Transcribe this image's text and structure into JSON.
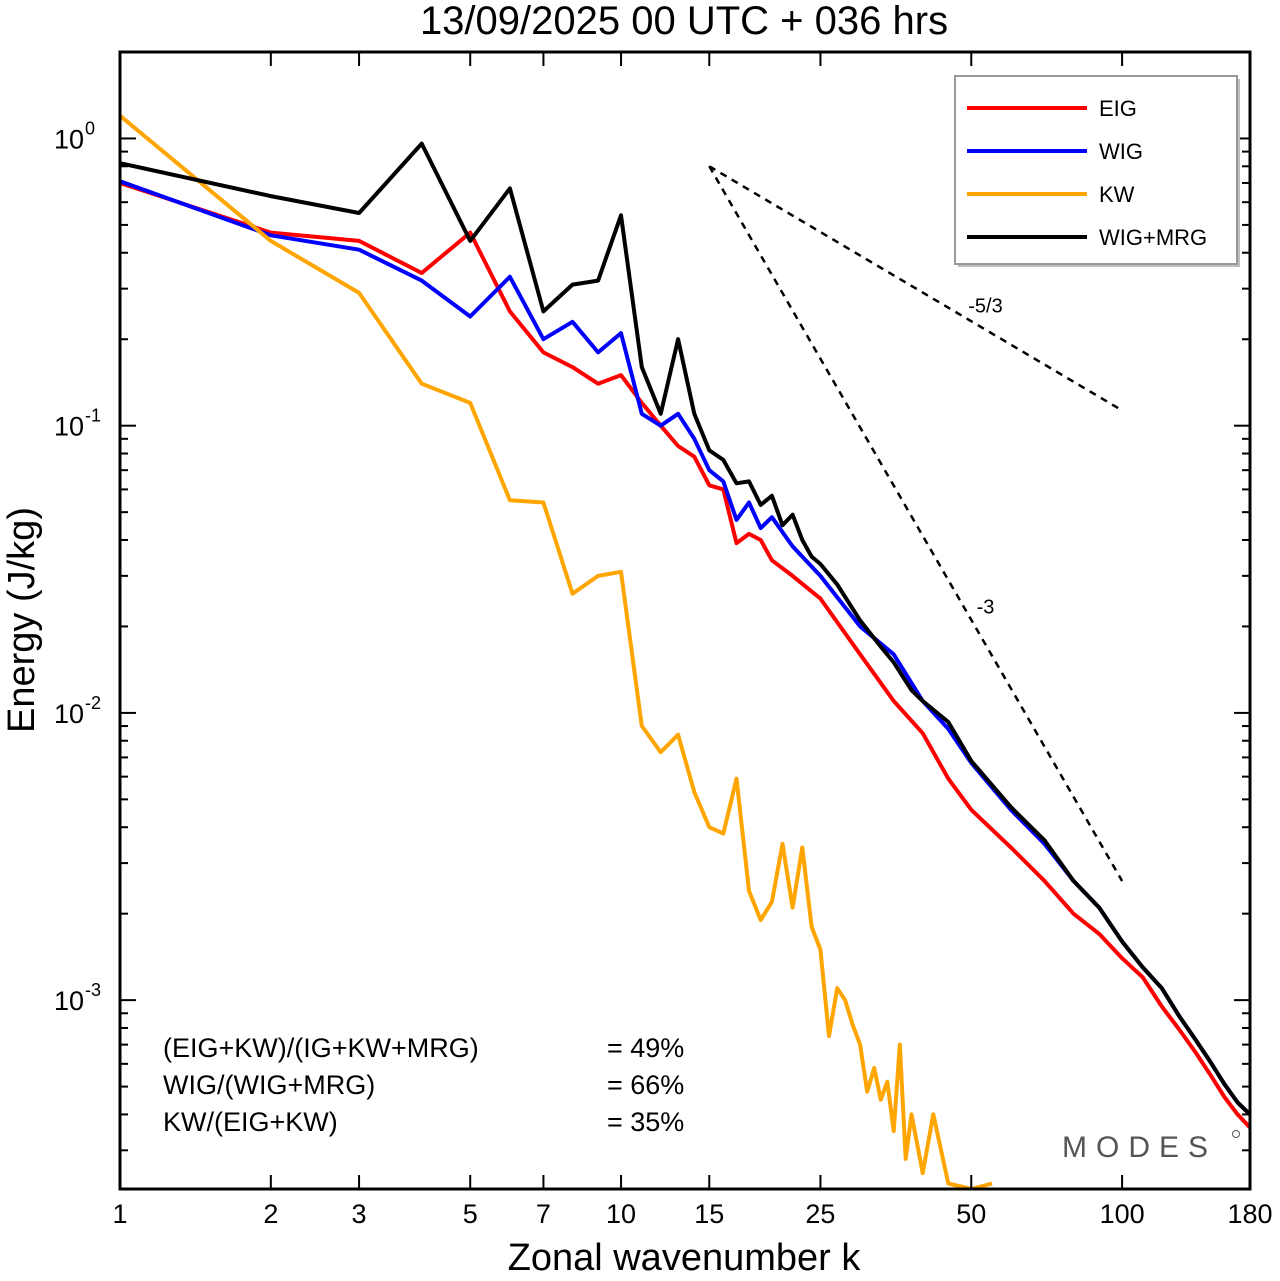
{
  "chart_data": {
    "type": "line",
    "title": "13/09/2025  00 UTC  + 036 hrs",
    "xlabel": "Zonal wavenumber k",
    "ylabel": "Energy (J/kg)",
    "xscale": "log",
    "yscale": "log",
    "xlim": [
      1,
      180
    ],
    "ylim": [
      0.00022,
      2.0
    ],
    "xticks": [
      {
        "value": 1,
        "label": "1"
      },
      {
        "value": 2,
        "label": "2"
      },
      {
        "value": 3,
        "label": "3"
      },
      {
        "value": 5,
        "label": "5"
      },
      {
        "value": 7,
        "label": "7"
      },
      {
        "value": 10,
        "label": "10"
      },
      {
        "value": 15,
        "label": "15"
      },
      {
        "value": 25,
        "label": "25"
      },
      {
        "value": 50,
        "label": "50"
      },
      {
        "value": 100,
        "label": "100"
      },
      {
        "value": 180,
        "label": "180"
      }
    ],
    "yticks": [
      {
        "value": 1,
        "base": "10",
        "exp": "0"
      },
      {
        "value": 0.1,
        "base": "10",
        "exp": "-1"
      },
      {
        "value": 0.01,
        "base": "10",
        "exp": "-2"
      },
      {
        "value": 0.001,
        "base": "10",
        "exp": "-3"
      }
    ],
    "legend_position": "top-right",
    "series": [
      {
        "name": "EIG",
        "color": "#ff0000",
        "x": [
          1,
          2,
          3,
          4,
          5,
          6,
          7,
          8,
          9,
          10,
          11,
          12,
          13,
          14,
          15,
          16,
          17,
          18,
          19,
          20,
          22,
          25,
          30,
          35,
          40,
          45,
          50,
          60,
          70,
          80,
          90,
          100,
          110,
          120,
          130,
          140,
          150,
          160,
          170,
          180
        ],
        "values": [
          0.7,
          0.47,
          0.44,
          0.34,
          0.47,
          0.25,
          0.18,
          0.16,
          0.14,
          0.15,
          0.12,
          0.1,
          0.085,
          0.078,
          0.062,
          0.06,
          0.039,
          0.042,
          0.04,
          0.034,
          0.03,
          0.025,
          0.016,
          0.011,
          0.0085,
          0.0059,
          0.0046,
          0.0034,
          0.0026,
          0.002,
          0.0017,
          0.0014,
          0.0012,
          0.00095,
          0.00079,
          0.00066,
          0.00055,
          0.00046,
          0.0004,
          0.00036
        ]
      },
      {
        "name": "WIG",
        "color": "#0000ff",
        "x": [
          1,
          2,
          3,
          4,
          5,
          6,
          7,
          8,
          9,
          10,
          11,
          12,
          13,
          14,
          15,
          16,
          17,
          18,
          19,
          20,
          22,
          25,
          30,
          35,
          40,
          45,
          50,
          60,
          70,
          80,
          90,
          100,
          110,
          120,
          130,
          140,
          150,
          160,
          170,
          180
        ],
        "values": [
          0.71,
          0.46,
          0.41,
          0.32,
          0.24,
          0.33,
          0.2,
          0.23,
          0.18,
          0.21,
          0.11,
          0.1,
          0.11,
          0.09,
          0.07,
          0.064,
          0.047,
          0.054,
          0.044,
          0.048,
          0.038,
          0.03,
          0.02,
          0.016,
          0.011,
          0.0088,
          0.0067,
          0.0046,
          0.0035,
          0.0026,
          0.0021,
          0.0016,
          0.0013,
          0.0011,
          0.00088,
          0.00073,
          0.00061,
          0.00051,
          0.00044,
          0.0004
        ]
      },
      {
        "name": "KW",
        "color": "#ffa500",
        "x": [
          1,
          2,
          3,
          4,
          5,
          6,
          7,
          8,
          9,
          10,
          11,
          12,
          13,
          14,
          15,
          16,
          17,
          18,
          19,
          20,
          21,
          22,
          23,
          24,
          25,
          26,
          27,
          28,
          29,
          30,
          31,
          32,
          33,
          34,
          35,
          36,
          37,
          38,
          40,
          42,
          45,
          50,
          55
        ],
        "values": [
          1.2,
          0.44,
          0.29,
          0.14,
          0.12,
          0.055,
          0.054,
          0.026,
          0.03,
          0.031,
          0.009,
          0.0073,
          0.0084,
          0.0053,
          0.004,
          0.0038,
          0.0059,
          0.0024,
          0.0019,
          0.0022,
          0.0035,
          0.0021,
          0.0034,
          0.0018,
          0.0015,
          0.00075,
          0.0011,
          0.001,
          0.00082,
          0.0007,
          0.00048,
          0.00058,
          0.00045,
          0.00052,
          0.00035,
          0.0007,
          0.00028,
          0.0004,
          0.00025,
          0.0004,
          0.00023,
          0.00022,
          0.00023
        ]
      },
      {
        "name": "WIG+MRG",
        "color": "#000000",
        "x": [
          1,
          2,
          3,
          4,
          5,
          6,
          7,
          8,
          9,
          10,
          11,
          12,
          13,
          14,
          15,
          16,
          17,
          18,
          19,
          20,
          21,
          22,
          23,
          24,
          25,
          27,
          30,
          33,
          35,
          38,
          40,
          45,
          50,
          60,
          70,
          80,
          90,
          100,
          110,
          120,
          130,
          140,
          150,
          160,
          170,
          180
        ],
        "values": [
          0.82,
          0.63,
          0.55,
          0.96,
          0.44,
          0.67,
          0.25,
          0.31,
          0.32,
          0.54,
          0.16,
          0.11,
          0.2,
          0.11,
          0.082,
          0.076,
          0.063,
          0.064,
          0.053,
          0.057,
          0.045,
          0.049,
          0.04,
          0.035,
          0.033,
          0.028,
          0.021,
          0.017,
          0.015,
          0.012,
          0.011,
          0.0093,
          0.0068,
          0.0047,
          0.0036,
          0.0026,
          0.0021,
          0.0016,
          0.0013,
          0.0011,
          0.00088,
          0.00073,
          0.00061,
          0.00051,
          0.00044,
          0.0004
        ]
      }
    ],
    "reference_slopes": [
      {
        "label": "-5/3",
        "k": [
          15,
          100
        ],
        "e": [
          0.8,
          0.113
        ]
      },
      {
        "label": "-3",
        "k": [
          15,
          100
        ],
        "e": [
          0.8,
          0.0026
        ]
      }
    ],
    "annotations": [
      {
        "label": "(EIG+KW)/(IG+KW+MRG)",
        "value": "= 49%"
      },
      {
        "label": "WIG/(WIG+MRG)",
        "value": "= 66%"
      },
      {
        "label": "KW/(EIG+KW)",
        "value": "= 35%"
      }
    ],
    "watermark": "MODES"
  }
}
